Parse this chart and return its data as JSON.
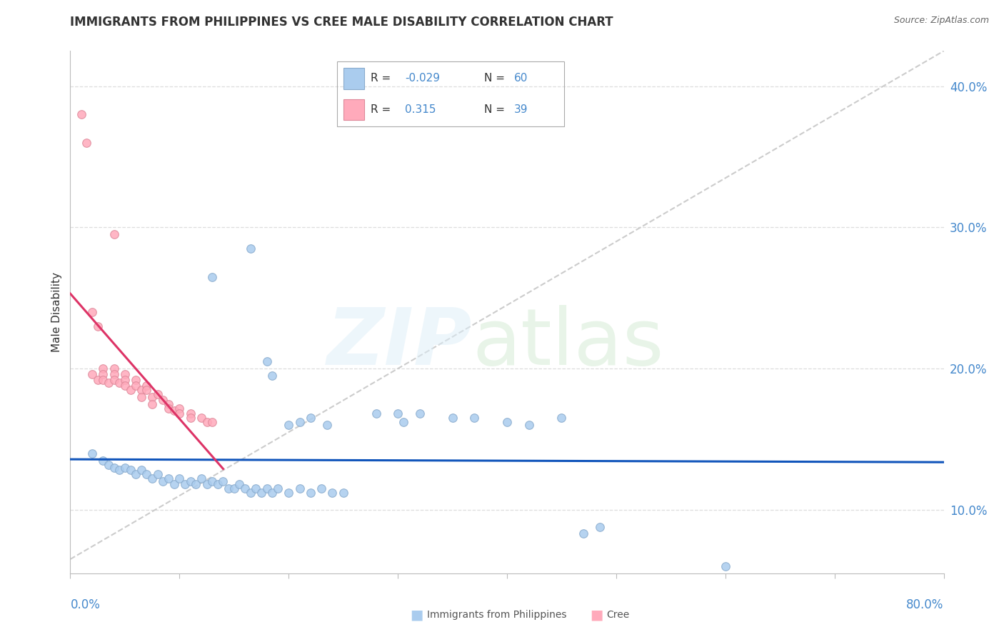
{
  "title": "IMMIGRANTS FROM PHILIPPINES VS CREE MALE DISABILITY CORRELATION CHART",
  "source": "Source: ZipAtlas.com",
  "ylabel": "Male Disability",
  "xlim": [
    0.0,
    0.8
  ],
  "ylim": [
    0.055,
    0.425
  ],
  "yticks": [
    0.1,
    0.2,
    0.3,
    0.4
  ],
  "ytick_labels": [
    "10.0%",
    "20.0%",
    "30.0%",
    "40.0%"
  ],
  "xtick_positions": [
    0.0,
    0.1,
    0.2,
    0.3,
    0.4,
    0.5,
    0.6,
    0.7,
    0.8
  ],
  "blue_color": "#aaccee",
  "blue_edge_color": "#88aacc",
  "pink_color": "#ffaabb",
  "pink_edge_color": "#dd8899",
  "blue_line_color": "#1155bb",
  "pink_line_color": "#dd3366",
  "ref_line_color": "#cccccc",
  "grid_color": "#dddddd",
  "axis_color": "#bbbbbb",
  "label_color": "#4488cc",
  "text_color": "#333333",
  "legend_r1_val": "-0.029",
  "legend_n1_val": "60",
  "legend_r2_val": "0.315",
  "legend_n2_val": "39",
  "blue_scatter": [
    [
      0.02,
      0.14
    ],
    [
      0.03,
      0.135
    ],
    [
      0.035,
      0.132
    ],
    [
      0.04,
      0.13
    ],
    [
      0.045,
      0.128
    ],
    [
      0.05,
      0.13
    ],
    [
      0.055,
      0.128
    ],
    [
      0.06,
      0.125
    ],
    [
      0.065,
      0.128
    ],
    [
      0.07,
      0.125
    ],
    [
      0.075,
      0.122
    ],
    [
      0.08,
      0.125
    ],
    [
      0.085,
      0.12
    ],
    [
      0.09,
      0.122
    ],
    [
      0.095,
      0.118
    ],
    [
      0.1,
      0.122
    ],
    [
      0.105,
      0.118
    ],
    [
      0.11,
      0.12
    ],
    [
      0.115,
      0.118
    ],
    [
      0.12,
      0.122
    ],
    [
      0.125,
      0.118
    ],
    [
      0.13,
      0.12
    ],
    [
      0.135,
      0.118
    ],
    [
      0.14,
      0.12
    ],
    [
      0.145,
      0.115
    ],
    [
      0.15,
      0.115
    ],
    [
      0.155,
      0.118
    ],
    [
      0.16,
      0.115
    ],
    [
      0.165,
      0.112
    ],
    [
      0.17,
      0.115
    ],
    [
      0.175,
      0.112
    ],
    [
      0.18,
      0.115
    ],
    [
      0.185,
      0.112
    ],
    [
      0.19,
      0.115
    ],
    [
      0.2,
      0.112
    ],
    [
      0.21,
      0.115
    ],
    [
      0.22,
      0.112
    ],
    [
      0.23,
      0.115
    ],
    [
      0.24,
      0.112
    ],
    [
      0.25,
      0.112
    ],
    [
      0.13,
      0.265
    ],
    [
      0.165,
      0.285
    ],
    [
      0.18,
      0.205
    ],
    [
      0.185,
      0.195
    ],
    [
      0.2,
      0.16
    ],
    [
      0.21,
      0.162
    ],
    [
      0.22,
      0.165
    ],
    [
      0.235,
      0.16
    ],
    [
      0.28,
      0.168
    ],
    [
      0.3,
      0.168
    ],
    [
      0.305,
      0.162
    ],
    [
      0.32,
      0.168
    ],
    [
      0.35,
      0.165
    ],
    [
      0.37,
      0.165
    ],
    [
      0.4,
      0.162
    ],
    [
      0.42,
      0.16
    ],
    [
      0.45,
      0.165
    ],
    [
      0.47,
      0.083
    ],
    [
      0.485,
      0.088
    ],
    [
      0.6,
      0.06
    ]
  ],
  "pink_scatter": [
    [
      0.01,
      0.38
    ],
    [
      0.015,
      0.36
    ],
    [
      0.02,
      0.24
    ],
    [
      0.025,
      0.23
    ],
    [
      0.02,
      0.196
    ],
    [
      0.025,
      0.192
    ],
    [
      0.03,
      0.2
    ],
    [
      0.03,
      0.196
    ],
    [
      0.03,
      0.192
    ],
    [
      0.035,
      0.19
    ],
    [
      0.04,
      0.295
    ],
    [
      0.04,
      0.2
    ],
    [
      0.04,
      0.196
    ],
    [
      0.04,
      0.192
    ],
    [
      0.045,
      0.19
    ],
    [
      0.05,
      0.196
    ],
    [
      0.05,
      0.192
    ],
    [
      0.05,
      0.188
    ],
    [
      0.055,
      0.185
    ],
    [
      0.06,
      0.192
    ],
    [
      0.06,
      0.188
    ],
    [
      0.065,
      0.185
    ],
    [
      0.065,
      0.18
    ],
    [
      0.07,
      0.188
    ],
    [
      0.07,
      0.185
    ],
    [
      0.075,
      0.18
    ],
    [
      0.075,
      0.175
    ],
    [
      0.08,
      0.182
    ],
    [
      0.085,
      0.178
    ],
    [
      0.09,
      0.175
    ],
    [
      0.09,
      0.172
    ],
    [
      0.095,
      0.17
    ],
    [
      0.1,
      0.172
    ],
    [
      0.1,
      0.168
    ],
    [
      0.11,
      0.168
    ],
    [
      0.11,
      0.165
    ],
    [
      0.12,
      0.165
    ],
    [
      0.125,
      0.162
    ],
    [
      0.13,
      0.162
    ]
  ]
}
